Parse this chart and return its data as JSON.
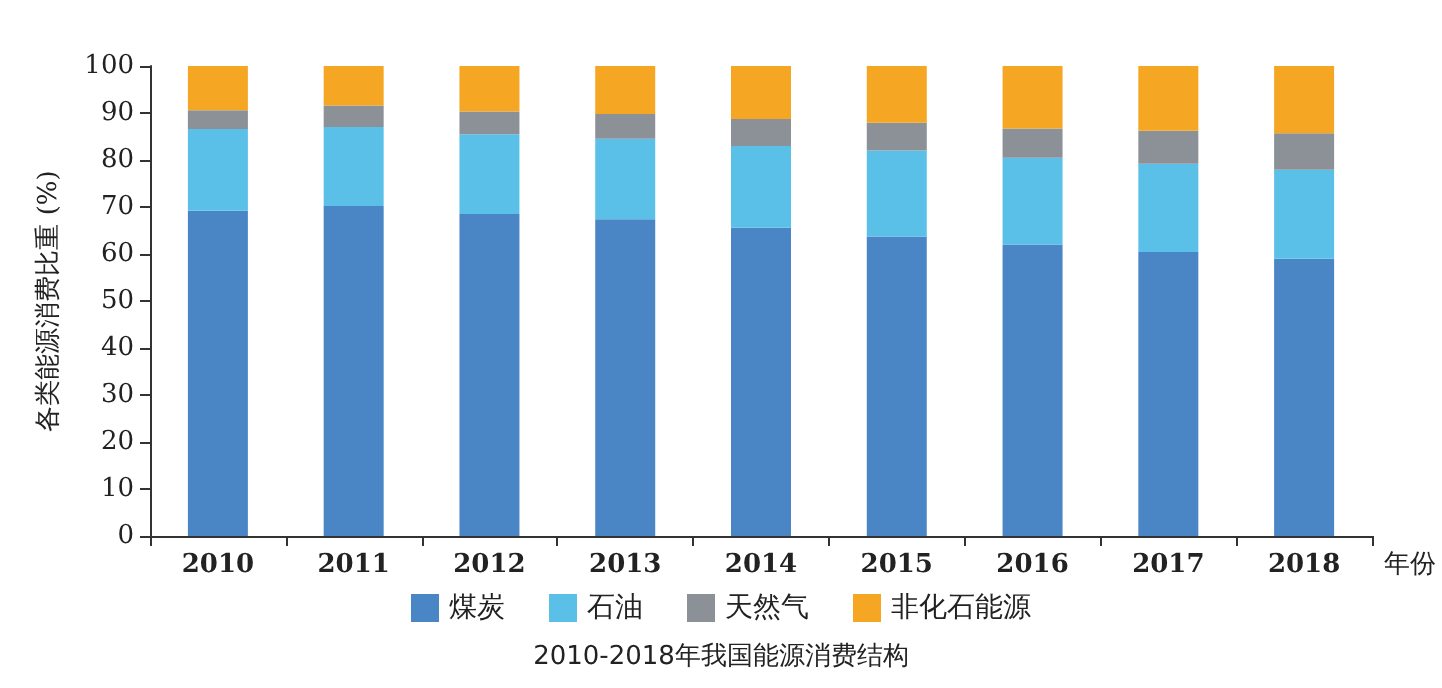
{
  "chart_data": {
    "type": "bar",
    "title": "2010-2018年我国能源消费结构",
    "xlabel": "年份",
    "ylabel": "各类能源消费比重 (%)",
    "categories": [
      "2010",
      "2011",
      "2012",
      "2013",
      "2014",
      "2015",
      "2016",
      "2017",
      "2018"
    ],
    "stacked": true,
    "ylim": [
      0,
      100
    ],
    "yticks": [
      0,
      10,
      20,
      30,
      40,
      50,
      60,
      70,
      80,
      90,
      100
    ],
    "grid": false,
    "legend": "bottom",
    "series": [
      {
        "name": "煤炭",
        "color": "#4a86c5",
        "values": [
          69.2,
          70.2,
          68.5,
          67.4,
          65.6,
          63.7,
          62.0,
          60.4,
          59.0
        ]
      },
      {
        "name": "石油",
        "color": "#5bc0e8",
        "values": [
          17.4,
          16.8,
          17.0,
          17.1,
          17.4,
          18.3,
          18.5,
          18.8,
          18.9
        ]
      },
      {
        "name": "天然气",
        "color": "#8c9198",
        "values": [
          4.0,
          4.6,
          4.8,
          5.3,
          5.7,
          5.9,
          6.2,
          7.0,
          7.8
        ]
      },
      {
        "name": "非化石能源",
        "color": "#f5a623",
        "values": [
          9.4,
          8.4,
          9.7,
          10.2,
          11.3,
          12.1,
          13.3,
          13.8,
          14.3
        ]
      }
    ]
  }
}
